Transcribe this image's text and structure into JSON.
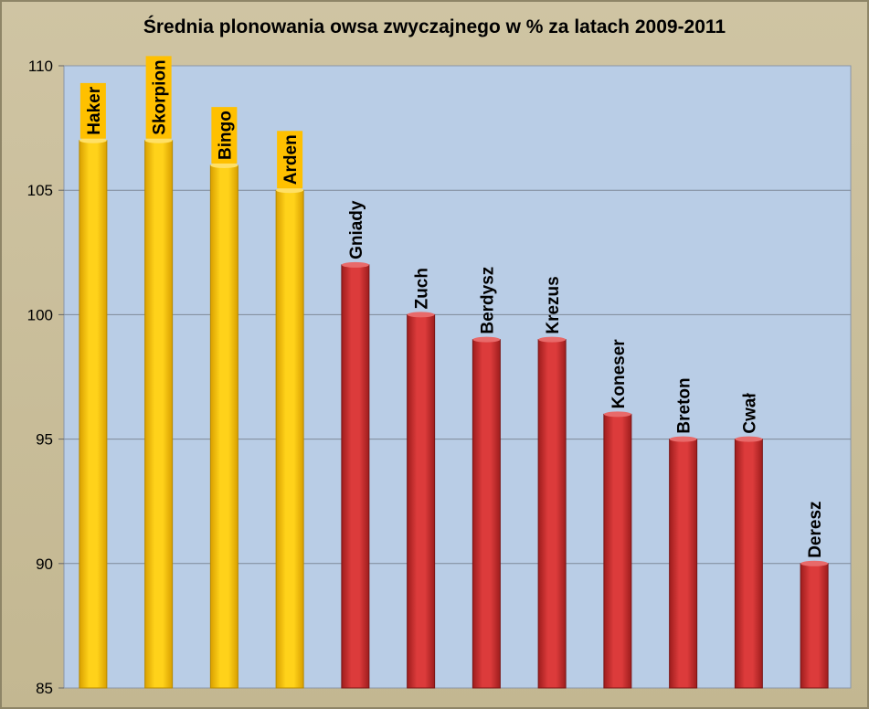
{
  "chart_data": {
    "type": "bar",
    "title": "Średnia plonowania  owsa zwyczajnego w %  za latach 2009-2011",
    "xlabel": "",
    "ylabel": "",
    "ylim": [
      85,
      110
    ],
    "yticks": [
      "85",
      "90",
      "95",
      "100",
      "105",
      "110"
    ],
    "grid": true,
    "categories": [
      "Haker",
      "Skorpion",
      "Bingo",
      "Arden",
      "Gniady",
      "Zuch",
      "Berdysz",
      "Krezus",
      "Koneser",
      "Breton",
      "Cwał",
      "Deresz"
    ],
    "values": [
      107,
      107,
      106,
      105,
      102,
      100,
      99,
      99,
      96,
      95,
      95,
      90
    ],
    "highlighted": [
      true,
      true,
      true,
      true,
      false,
      false,
      false,
      false,
      false,
      false,
      false,
      false
    ],
    "colors": {
      "plot_background": "#b9cde6",
      "highlight_bar": "#ffc400",
      "highlight_label_bg": "#ffc000",
      "normal_bar": "#cf3535"
    }
  }
}
